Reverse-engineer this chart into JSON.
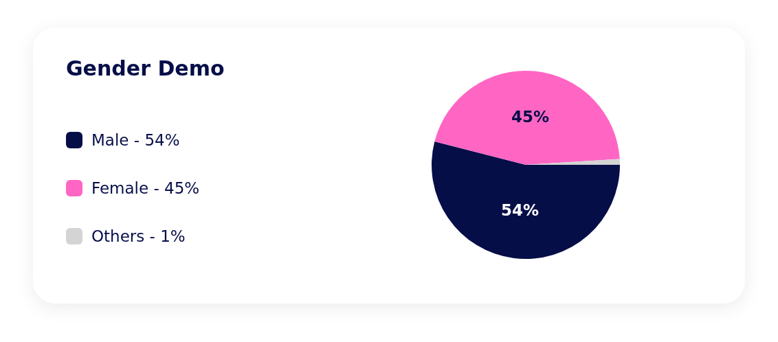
{
  "chart_data": {
    "type": "pie",
    "title": "Gender Demo",
    "categories": [
      "Male - 54%",
      "Female - 45%",
      "Others - 1%"
    ],
    "values": [
      54,
      45,
      1
    ],
    "colors": [
      "#060e48",
      "#ff66c4",
      "#d4d4d4"
    ],
    "value_labels": [
      "54%",
      "45%",
      null
    ],
    "legend": "left"
  }
}
